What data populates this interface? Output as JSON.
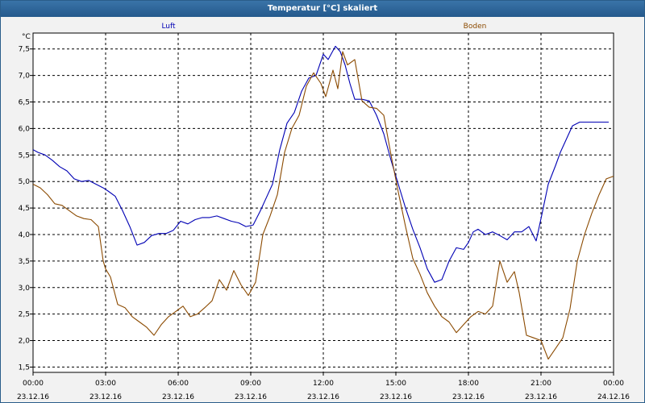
{
  "window": {
    "title": "Temperatur [°C] skaliert"
  },
  "colors": {
    "luft": "#0000b4",
    "boden": "#8b4a00",
    "grid": "#000000",
    "background": "#f2f2f2",
    "titlebar": "#2a66a0"
  },
  "chart_data": {
    "type": "line",
    "title": "Temperatur [°C] skaliert",
    "ylabel": "°C",
    "xlabel": "",
    "ylim": [
      1.4,
      7.8
    ],
    "xlim": [
      0,
      24
    ],
    "grid": true,
    "legend_placement": "top",
    "yticks": [
      "7,5",
      "7,0",
      "6,5",
      "6,0",
      "5,5",
      "5,0",
      "4,5",
      "4,0",
      "3,5",
      "3,0",
      "2,5",
      "2,0",
      "1,5"
    ],
    "ytick_values": [
      7.5,
      7.0,
      6.5,
      6.0,
      5.5,
      5.0,
      4.5,
      4.0,
      3.5,
      3.0,
      2.5,
      2.0,
      1.5
    ],
    "xticks": [
      {
        "time": "00:00",
        "date": "23.12.16"
      },
      {
        "time": "03:00",
        "date": "23.12.16"
      },
      {
        "time": "06:00",
        "date": "23.12.16"
      },
      {
        "time": "09:00",
        "date": "23.12.16"
      },
      {
        "time": "12:00",
        "date": "23.12.16"
      },
      {
        "time": "15:00",
        "date": "23.12.16"
      },
      {
        "time": "18:00",
        "date": "23.12.16"
      },
      {
        "time": "21:00",
        "date": "23.12.16"
      },
      {
        "time": "00:00",
        "date": "24.12.16"
      }
    ],
    "xtick_values": [
      0,
      3,
      6,
      9,
      12,
      15,
      18,
      21,
      24
    ],
    "series": [
      {
        "name": "Luft",
        "color": "#0000b4",
        "x": [
          0,
          0.2,
          0.5,
          0.8,
          1.1,
          1.4,
          1.7,
          2.0,
          2.3,
          2.6,
          2.9,
          3.1,
          3.4,
          3.7,
          4.0,
          4.3,
          4.6,
          4.9,
          5.2,
          5.5,
          5.8,
          6.1,
          6.4,
          6.7,
          7.0,
          7.3,
          7.6,
          7.9,
          8.2,
          8.5,
          8.8,
          9.1,
          9.4,
          9.6,
          9.9,
          10.2,
          10.5,
          10.8,
          11.1,
          11.4,
          11.7,
          12.0,
          12.2,
          12.5,
          12.7,
          12.9,
          13.1,
          13.3,
          13.6,
          13.9,
          14.2,
          14.5,
          14.8,
          15.1,
          15.4,
          15.7,
          16.0,
          16.3,
          16.6,
          16.9,
          17.2,
          17.5,
          17.8,
          18.0,
          18.2,
          18.4,
          18.7,
          19.0,
          19.3,
          19.6,
          19.9,
          20.2,
          20.5,
          20.8,
          21.0,
          21.3,
          21.6,
          21.8,
          22.0,
          22.3,
          22.6,
          22.9,
          23.2,
          23.5,
          23.8
        ],
        "values": [
          5.6,
          5.55,
          5.5,
          5.4,
          5.28,
          5.2,
          5.05,
          5.0,
          5.02,
          4.95,
          4.88,
          4.82,
          4.72,
          4.45,
          4.15,
          3.8,
          3.85,
          3.98,
          4.02,
          4.02,
          4.08,
          4.25,
          4.2,
          4.28,
          4.32,
          4.32,
          4.35,
          4.3,
          4.25,
          4.22,
          4.15,
          4.18,
          4.45,
          4.65,
          4.95,
          5.6,
          6.1,
          6.3,
          6.7,
          6.95,
          7.0,
          7.4,
          7.3,
          7.55,
          7.45,
          7.2,
          6.85,
          6.55,
          6.55,
          6.52,
          6.25,
          5.9,
          5.4,
          4.95,
          4.5,
          4.1,
          3.75,
          3.35,
          3.1,
          3.15,
          3.5,
          3.75,
          3.72,
          3.85,
          4.05,
          4.1,
          4.0,
          4.05,
          3.98,
          3.9,
          4.05,
          4.05,
          4.15,
          3.88,
          4.3,
          4.95,
          5.3,
          5.55,
          5.75,
          6.05,
          6.12,
          6.12,
          6.12,
          6.12,
          6.12
        ]
      },
      {
        "name": "Boden",
        "color": "#8b4a00",
        "x": [
          0,
          0.3,
          0.6,
          0.9,
          1.2,
          1.5,
          1.8,
          2.1,
          2.4,
          2.7,
          2.9,
          3.0,
          3.2,
          3.5,
          3.8,
          4.1,
          4.4,
          4.7,
          5.0,
          5.3,
          5.6,
          5.9,
          6.2,
          6.5,
          6.8,
          7.1,
          7.4,
          7.7,
          8.0,
          8.3,
          8.6,
          8.9,
          9.2,
          9.5,
          9.8,
          10.1,
          10.4,
          10.7,
          11.0,
          11.3,
          11.6,
          11.9,
          12.1,
          12.4,
          12.6,
          12.8,
          13.0,
          13.3,
          13.6,
          13.9,
          14.2,
          14.5,
          14.8,
          15.1,
          15.4,
          15.7,
          16.0,
          16.3,
          16.6,
          16.9,
          17.2,
          17.5,
          17.8,
          18.1,
          18.4,
          18.7,
          19.0,
          19.3,
          19.6,
          19.9,
          20.1,
          20.4,
          20.7,
          21.0,
          21.3,
          21.6,
          21.9,
          22.2,
          22.5,
          22.8,
          23.1,
          23.4,
          23.7,
          24.0
        ],
        "values": [
          4.95,
          4.88,
          4.75,
          4.58,
          4.55,
          4.45,
          4.35,
          4.3,
          4.28,
          4.15,
          3.5,
          3.35,
          3.2,
          2.68,
          2.62,
          2.45,
          2.35,
          2.25,
          2.1,
          2.3,
          2.45,
          2.55,
          2.65,
          2.45,
          2.5,
          2.62,
          2.75,
          3.15,
          2.95,
          3.32,
          3.05,
          2.85,
          3.1,
          4.0,
          4.35,
          4.75,
          5.55,
          6.0,
          6.25,
          6.8,
          7.05,
          6.85,
          6.6,
          7.1,
          6.75,
          7.45,
          7.2,
          7.3,
          6.52,
          6.4,
          6.38,
          6.25,
          5.5,
          4.8,
          4.15,
          3.55,
          3.25,
          2.9,
          2.65,
          2.45,
          2.35,
          2.15,
          2.3,
          2.45,
          2.55,
          2.5,
          2.65,
          3.5,
          3.1,
          3.3,
          2.9,
          2.1,
          2.05,
          2.0,
          1.65,
          1.85,
          2.05,
          2.6,
          3.5,
          4.0,
          4.4,
          4.75,
          5.05,
          5.1
        ]
      }
    ]
  }
}
